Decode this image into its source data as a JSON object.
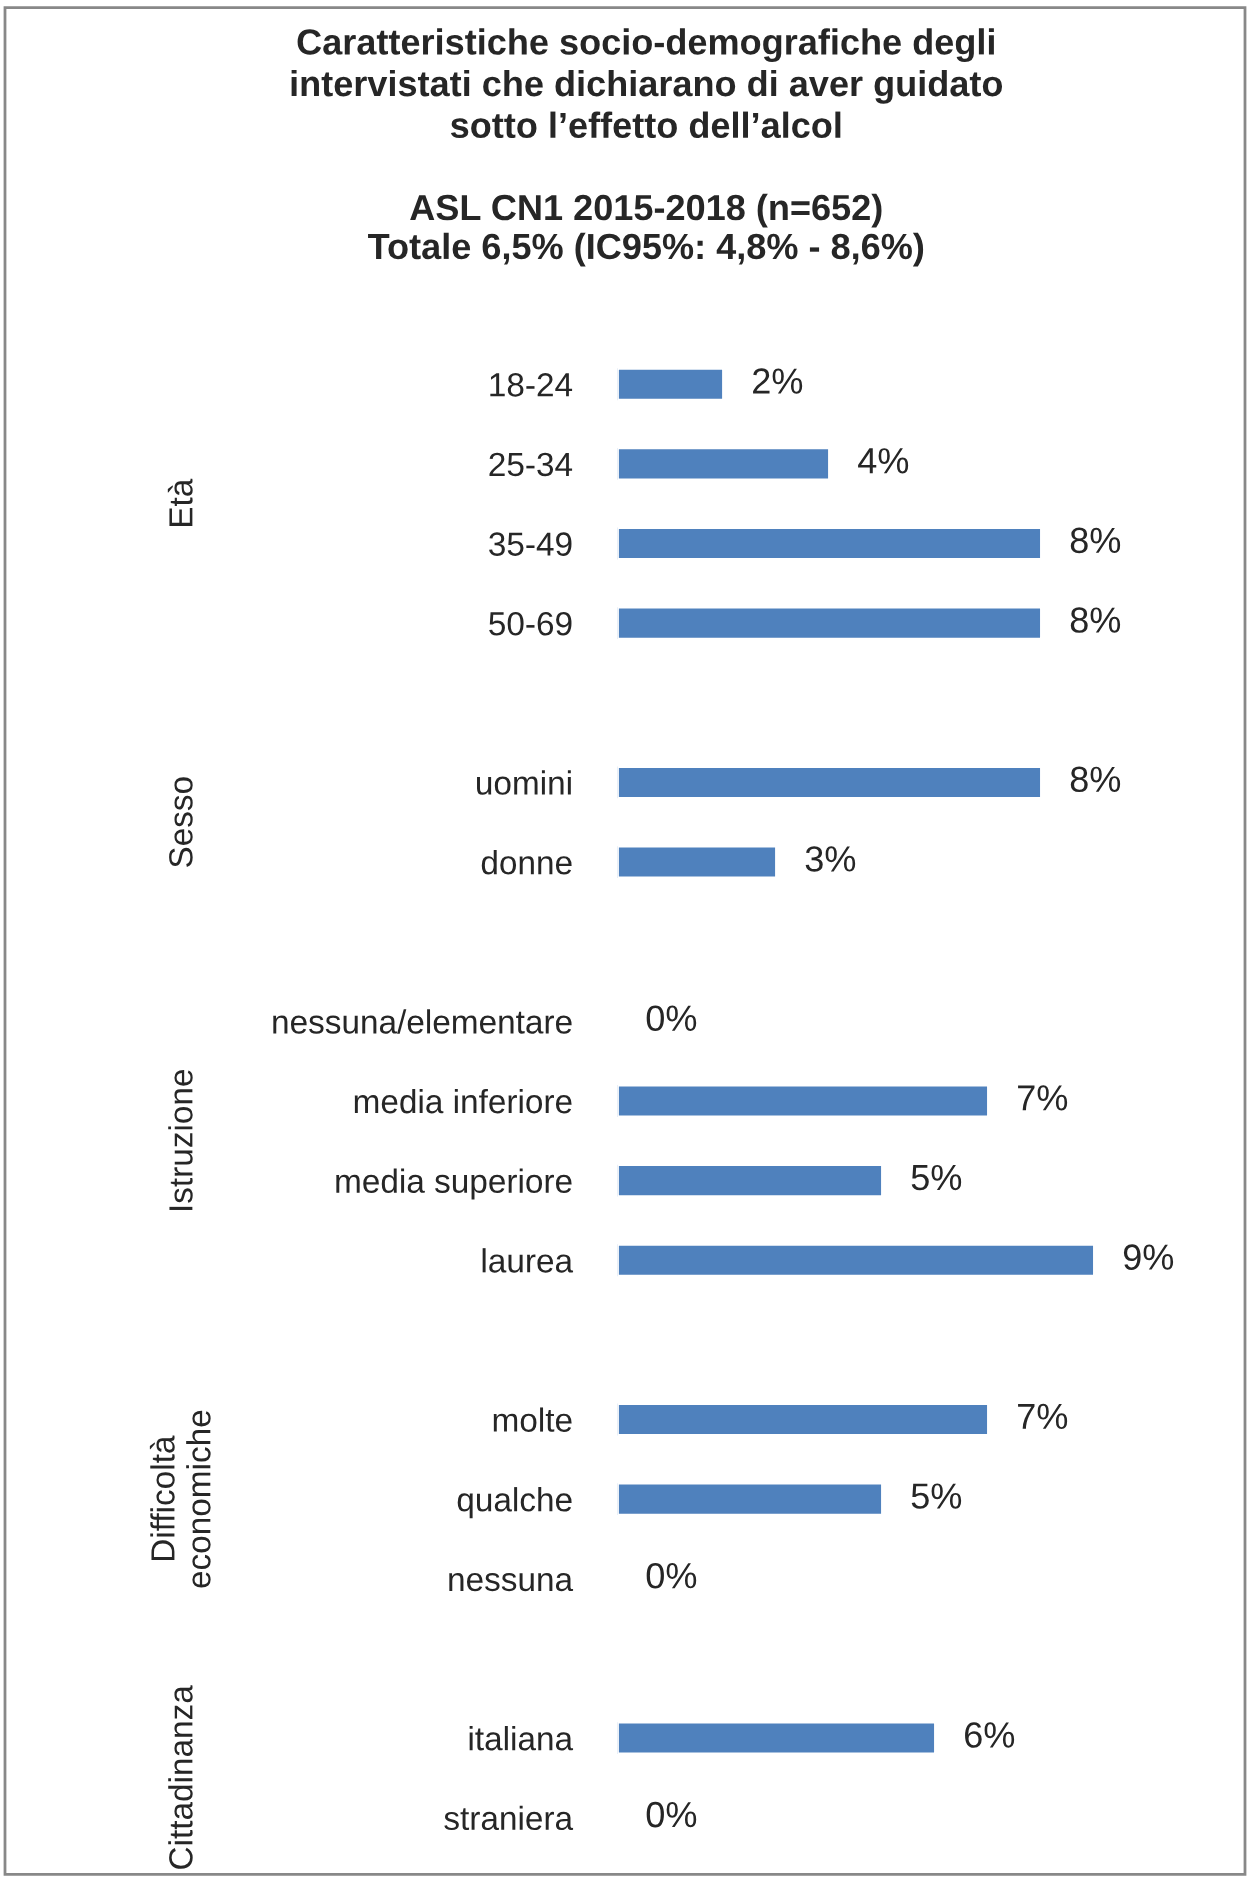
{
  "chart_data": {
    "type": "bar",
    "orientation": "horizontal",
    "title": "Caratteristiche socio-demografiche degli\nintervistati che dichiarano di aver guidato\nsotto l’effetto dell’alcol",
    "subtitle": "ASL CN1 2015-2018 (n=652)\nTotale 6,5% (IC95%: 4,8% - 8,6%)",
    "categories": [
      "18-24",
      "25-34",
      "35-49",
      "50-69",
      null,
      "uomini",
      "donne",
      null,
      "nessuna/elementare",
      "media inferiore",
      "media superiore",
      "laurea",
      null,
      "molte",
      "qualche",
      "nessuna",
      null,
      "italiana",
      "straniera"
    ],
    "values": [
      2,
      4,
      8,
      8,
      null,
      8,
      3,
      null,
      0,
      7,
      5,
      9,
      null,
      7,
      5,
      0,
      null,
      6,
      0
    ],
    "value_labels": [
      "2%",
      "4%",
      "8%",
      "8%",
      null,
      "8%",
      "3%",
      null,
      "0%",
      "7%",
      "5%",
      "9%",
      null,
      "7%",
      "5%",
      "0%",
      null,
      "6%",
      "0%"
    ],
    "color": "#4f81bd",
    "annotations": [
      "Età",
      "Sesso",
      "Istruzione",
      "Difficoltà\neconomiche",
      "Cittadinanza"
    ],
    "grid": false,
    "legend": false
  }
}
